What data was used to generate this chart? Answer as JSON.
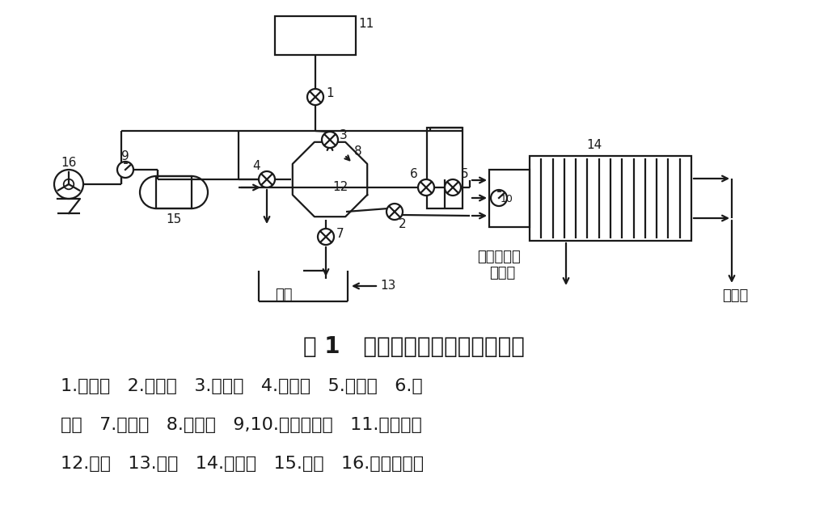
{
  "bg_color": "#ffffff",
  "line_color": "#1a1a1a",
  "fig_title": "图 1   压滤机脱水工艺系统组成图",
  "caption": [
    "1.节流阀   2.单向阀   3.单向阀   4.单向阀   5.单向阀   6.单",
    "向阀   7.单向阀   8.料位计   9,10.压力指示表   11.浮选精矿",
    "12.料槽   13.水池   14.压滤机   15.风包   16.空气压缩机"
  ],
  "title_fontsize": 20,
  "caption_fontsize": 16,
  "lw": 1.6
}
